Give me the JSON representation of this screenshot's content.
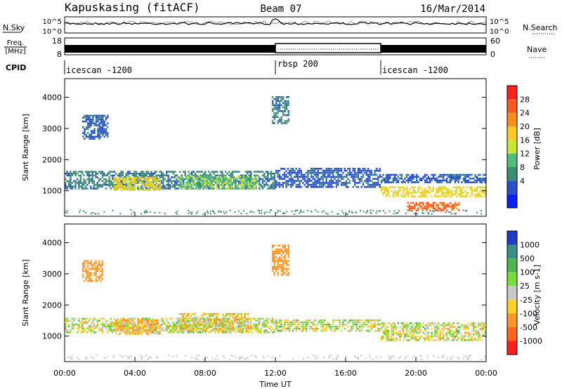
{
  "header": {
    "station": "Kapuskasing (fitACF)",
    "beam": "Beam 07",
    "date": "16/Mar/2014"
  },
  "status_panels": {
    "nsky": {
      "label": "N.Sky",
      "ticks": [
        "10^5",
        "10^0"
      ]
    },
    "nsearch": {
      "label": "N.Search",
      "ticks": [
        "10^5",
        "10^0"
      ]
    },
    "freq": {
      "label1": "Freq.",
      "label2": "[MHz]",
      "ticks": [
        "18",
        "8"
      ]
    },
    "nave": {
      "label": "Nave",
      "ticks": [
        "60",
        "0"
      ]
    },
    "cpid": {
      "label": "CPID",
      "segments": [
        {
          "name": "icescan -1200",
          "start": 0,
          "end": 12
        },
        {
          "name": "rbsp 200",
          "start": 12,
          "end": 18
        },
        {
          "name": "icescan -1200",
          "start": 18,
          "end": 24
        }
      ]
    }
  },
  "axes": {
    "ylabel": "Slant Range [km]",
    "yticks": [
      "1000",
      "2000",
      "3000",
      "4000"
    ],
    "xlabel": "Time UT",
    "xticks": [
      "00:00",
      "04:00",
      "08:00",
      "12:00",
      "16:00",
      "20:00",
      "00:00"
    ]
  },
  "power_bar": {
    "label": "Power [dB]",
    "ticks": [
      "28",
      "24",
      "20",
      "16",
      "12",
      "8",
      "4"
    ],
    "colors": [
      "#ff2020",
      "#ff5a1e",
      "#ff8c1e",
      "#ffc828",
      "#c8e632",
      "#50be78",
      "#3c8c78",
      "#2850c8",
      "#0a1eff"
    ]
  },
  "velocity_bar": {
    "label": "Velocity [m s-1]",
    "ticks": [
      "1000",
      "500",
      "100",
      "25",
      "-25",
      "-100",
      "-500",
      "-1000"
    ],
    "colors": [
      "#1e3cc8",
      "#3c8c8c",
      "#50b450",
      "#78dc3c",
      "#c8c8c8",
      "#ffd228",
      "#ff9628",
      "#ff641e",
      "#ff1e1e"
    ]
  },
  "chart_data": {
    "type": "heatmap",
    "title": "Kapuskasing (fitACF)  Beam 07  16/Mar/2014",
    "xlabel": "Time UT",
    "ylabel": "Slant Range [km]",
    "xlim": [
      0,
      24
    ],
    "ylim": [
      180,
      4600
    ],
    "grid": false,
    "panels": [
      {
        "name": "Power [dB]",
        "colorbar_range": [
          0,
          32
        ],
        "regions": [
          {
            "t0": 0.0,
            "t1": 12.0,
            "r0": 1100,
            "r1": 1700,
            "level": 8
          },
          {
            "t0": 2.8,
            "t1": 5.5,
            "r0": 1050,
            "r1": 1500,
            "level": 18
          },
          {
            "t0": 6.5,
            "t1": 11.0,
            "r0": 1100,
            "r1": 1550,
            "level": 14
          },
          {
            "t0": 1.0,
            "t1": 2.5,
            "r0": 2700,
            "r1": 3500,
            "level": 6
          },
          {
            "t0": 11.8,
            "t1": 12.8,
            "r0": 3200,
            "r1": 4100,
            "level": 8
          },
          {
            "t0": 12.0,
            "t1": 18.0,
            "r0": 1150,
            "r1": 1800,
            "level": 6
          },
          {
            "t0": 18.0,
            "t1": 24.0,
            "r0": 1300,
            "r1": 1600,
            "level": 6
          },
          {
            "t0": 18.0,
            "t1": 24.0,
            "r0": 850,
            "r1": 1200,
            "level": 18
          },
          {
            "t0": 19.5,
            "t1": 22.5,
            "r0": 400,
            "r1": 700,
            "level": 26
          }
        ]
      },
      {
        "name": "Velocity [m s-1]",
        "colorbar_range": [
          -1000,
          1000
        ],
        "regions": [
          {
            "t0": 0.0,
            "t1": 12.0,
            "r0": 1150,
            "r1": 1650,
            "level": 0
          },
          {
            "t0": 2.8,
            "t1": 5.5,
            "r0": 1100,
            "r1": 1600,
            "level": -100
          },
          {
            "t0": 6.5,
            "t1": 10.5,
            "r0": 1200,
            "r1": 1800,
            "level": -50
          },
          {
            "t0": 1.0,
            "t1": 2.2,
            "r0": 2800,
            "r1": 3500,
            "level": -300
          },
          {
            "t0": 11.8,
            "t1": 12.8,
            "r0": 3000,
            "r1": 4000,
            "level": -300
          },
          {
            "t0": 12.0,
            "t1": 18.0,
            "r0": 1200,
            "r1": 1600,
            "level": 0
          },
          {
            "t0": 18.0,
            "t1": 24.0,
            "r0": 900,
            "r1": 1500,
            "level": 0
          }
        ]
      }
    ]
  }
}
